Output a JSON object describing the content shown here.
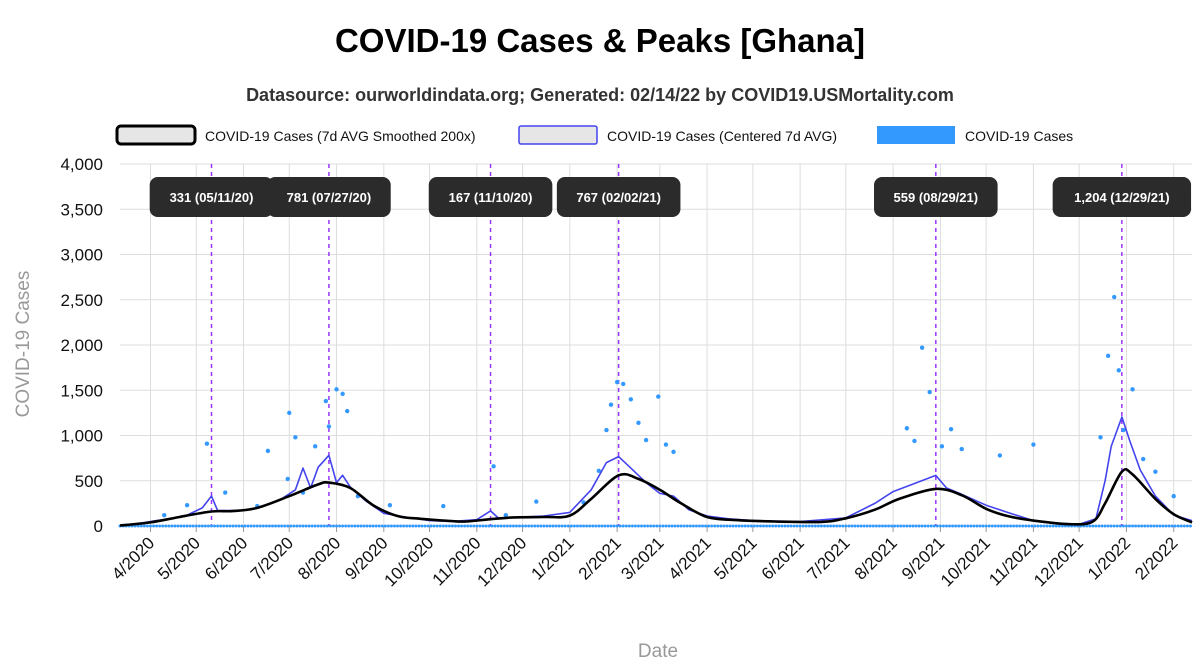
{
  "title": "COVID-19 Cases & Peaks [Ghana]",
  "subtitle": "Datasource: ourworldindata.org; Generated: 02/14/22 by COVID19.USMortality.com",
  "chart_data": {
    "type": "line",
    "xlabel": "Date",
    "ylabel": "COVID-19 Cases",
    "ylim": [
      0,
      4000
    ],
    "yticks": [
      0,
      500,
      1000,
      1500,
      2000,
      2500,
      3000,
      3500,
      4000
    ],
    "ytick_labels": [
      "0",
      "500",
      "1,000",
      "1,500",
      "2,000",
      "2,500",
      "3,000",
      "3,500",
      "4,000"
    ],
    "xlim": [
      "2020-03-12",
      "2022-02-13"
    ],
    "xticks": [
      "2020-04-01",
      "2020-05-01",
      "2020-06-01",
      "2020-07-01",
      "2020-08-01",
      "2020-09-01",
      "2020-10-01",
      "2020-11-01",
      "2020-12-01",
      "2021-01-01",
      "2021-02-01",
      "2021-03-01",
      "2021-04-01",
      "2021-05-01",
      "2021-06-01",
      "2021-07-01",
      "2021-08-01",
      "2021-09-01",
      "2021-10-01",
      "2021-11-01",
      "2021-12-01",
      "2022-01-01",
      "2022-02-01"
    ],
    "xtick_labels": [
      "4/2020",
      "5/2020",
      "6/2020",
      "7/2020",
      "8/2020",
      "9/2020",
      "10/2020",
      "11/2020",
      "12/2020",
      "1/2021",
      "2/2021",
      "3/2021",
      "4/2021",
      "5/2021",
      "6/2021",
      "7/2021",
      "8/2021",
      "9/2021",
      "10/2021",
      "11/2021",
      "12/2021",
      "1/2022",
      "2/2022"
    ],
    "grid": true,
    "legend_position": "top",
    "series": [
      {
        "name": "COVID-19 Cases (7d AVG Smoothed 200x)",
        "style": "line",
        "color": "#000000",
        "points": [
          [
            "2020-03-12",
            5
          ],
          [
            "2020-04-01",
            40
          ],
          [
            "2020-04-20",
            100
          ],
          [
            "2020-05-11",
            160
          ],
          [
            "2020-05-25",
            165
          ],
          [
            "2020-06-10",
            200
          ],
          [
            "2020-07-01",
            330
          ],
          [
            "2020-07-20",
            460
          ],
          [
            "2020-07-27",
            480
          ],
          [
            "2020-08-10",
            420
          ],
          [
            "2020-08-25",
            230
          ],
          [
            "2020-09-10",
            110
          ],
          [
            "2020-09-25",
            80
          ],
          [
            "2020-10-15",
            55
          ],
          [
            "2020-10-25",
            50
          ],
          [
            "2020-11-10",
            75
          ],
          [
            "2020-11-25",
            95
          ],
          [
            "2020-12-15",
            100
          ],
          [
            "2021-01-01",
            115
          ],
          [
            "2021-01-15",
            300
          ],
          [
            "2021-02-02",
            560
          ],
          [
            "2021-02-15",
            520
          ],
          [
            "2021-03-01",
            400
          ],
          [
            "2021-03-15",
            250
          ],
          [
            "2021-04-01",
            100
          ],
          [
            "2021-04-20",
            65
          ],
          [
            "2021-05-15",
            50
          ],
          [
            "2021-06-15",
            45
          ],
          [
            "2021-07-01",
            85
          ],
          [
            "2021-07-20",
            180
          ],
          [
            "2021-08-05",
            300
          ],
          [
            "2021-08-29",
            410
          ],
          [
            "2021-09-15",
            340
          ],
          [
            "2021-10-01",
            190
          ],
          [
            "2021-10-15",
            110
          ],
          [
            "2021-11-01",
            60
          ],
          [
            "2021-11-25",
            20
          ],
          [
            "2021-12-10",
            50
          ],
          [
            "2021-12-18",
            250
          ],
          [
            "2021-12-29",
            600
          ],
          [
            "2022-01-05",
            570
          ],
          [
            "2022-01-20",
            300
          ],
          [
            "2022-02-01",
            130
          ],
          [
            "2022-02-13",
            40
          ]
        ]
      },
      {
        "name": "COVID-19 Cases (Centered 7d AVG)",
        "style": "line",
        "color": "#4444ee",
        "points": [
          [
            "2020-03-12",
            5
          ],
          [
            "2020-03-25",
            30
          ],
          [
            "2020-04-05",
            60
          ],
          [
            "2020-04-15",
            80
          ],
          [
            "2020-04-25",
            120
          ],
          [
            "2020-05-05",
            200
          ],
          [
            "2020-05-11",
            331
          ],
          [
            "2020-05-15",
            170
          ],
          [
            "2020-05-25",
            170
          ],
          [
            "2020-06-05",
            180
          ],
          [
            "2020-06-15",
            230
          ],
          [
            "2020-06-25",
            290
          ],
          [
            "2020-07-05",
            400
          ],
          [
            "2020-07-10",
            640
          ],
          [
            "2020-07-15",
            420
          ],
          [
            "2020-07-20",
            650
          ],
          [
            "2020-07-27",
            781
          ],
          [
            "2020-08-01",
            480
          ],
          [
            "2020-08-05",
            560
          ],
          [
            "2020-08-10",
            430
          ],
          [
            "2020-08-20",
            280
          ],
          [
            "2020-09-01",
            140
          ],
          [
            "2020-09-15",
            100
          ],
          [
            "2020-10-01",
            60
          ],
          [
            "2020-10-15",
            50
          ],
          [
            "2020-11-01",
            70
          ],
          [
            "2020-11-10",
            167
          ],
          [
            "2020-11-15",
            90
          ],
          [
            "2020-12-01",
            100
          ],
          [
            "2020-12-15",
            110
          ],
          [
            "2021-01-01",
            150
          ],
          [
            "2021-01-15",
            400
          ],
          [
            "2021-01-25",
            700
          ],
          [
            "2021-02-02",
            767
          ],
          [
            "2021-02-10",
            640
          ],
          [
            "2021-02-20",
            480
          ],
          [
            "2021-03-01",
            360
          ],
          [
            "2021-03-10",
            330
          ],
          [
            "2021-03-20",
            180
          ],
          [
            "2021-04-01",
            110
          ],
          [
            "2021-04-15",
            80
          ],
          [
            "2021-05-01",
            60
          ],
          [
            "2021-06-01",
            50
          ],
          [
            "2021-07-01",
            90
          ],
          [
            "2021-07-20",
            250
          ],
          [
            "2021-08-01",
            380
          ],
          [
            "2021-08-15",
            470
          ],
          [
            "2021-08-29",
            559
          ],
          [
            "2021-09-05",
            420
          ],
          [
            "2021-09-15",
            350
          ],
          [
            "2021-10-01",
            230
          ],
          [
            "2021-10-15",
            150
          ],
          [
            "2021-11-01",
            60
          ],
          [
            "2021-11-15",
            30
          ],
          [
            "2021-12-01",
            20
          ],
          [
            "2021-12-12",
            80
          ],
          [
            "2021-12-18",
            500
          ],
          [
            "2021-12-22",
            880
          ],
          [
            "2021-12-29",
            1204
          ],
          [
            "2022-01-03",
            950
          ],
          [
            "2022-01-10",
            620
          ],
          [
            "2022-01-20",
            330
          ],
          [
            "2022-02-01",
            120
          ],
          [
            "2022-02-13",
            60
          ]
        ]
      },
      {
        "name": "COVID-19 Cases",
        "style": "scatter",
        "color": "#3399ff",
        "points": [
          [
            "2020-04-10",
            120
          ],
          [
            "2020-04-25",
            230
          ],
          [
            "2020-05-08",
            910
          ],
          [
            "2020-05-20",
            370
          ],
          [
            "2020-06-10",
            220
          ],
          [
            "2020-06-17",
            830
          ],
          [
            "2020-06-30",
            520
          ],
          [
            "2020-07-01",
            1250
          ],
          [
            "2020-07-05",
            980
          ],
          [
            "2020-07-10",
            370
          ],
          [
            "2020-07-18",
            880
          ],
          [
            "2020-07-25",
            1380
          ],
          [
            "2020-07-27",
            1100
          ],
          [
            "2020-08-01",
            1510
          ],
          [
            "2020-08-05",
            1460
          ],
          [
            "2020-08-08",
            1270
          ],
          [
            "2020-08-15",
            330
          ],
          [
            "2020-09-05",
            230
          ],
          [
            "2020-10-10",
            220
          ],
          [
            "2020-11-12",
            660
          ],
          [
            "2020-11-20",
            120
          ],
          [
            "2020-12-10",
            270
          ],
          [
            "2021-01-10",
            260
          ],
          [
            "2021-01-20",
            610
          ],
          [
            "2021-01-25",
            1060
          ],
          [
            "2021-01-28",
            1340
          ],
          [
            "2021-02-01",
            1590
          ],
          [
            "2021-02-05",
            1570
          ],
          [
            "2021-02-10",
            1400
          ],
          [
            "2021-02-15",
            1140
          ],
          [
            "2021-02-20",
            950
          ],
          [
            "2021-02-28",
            1430
          ],
          [
            "2021-03-05",
            900
          ],
          [
            "2021-03-10",
            820
          ],
          [
            "2021-08-10",
            1080
          ],
          [
            "2021-08-15",
            940
          ],
          [
            "2021-08-20",
            1970
          ],
          [
            "2021-08-25",
            1480
          ],
          [
            "2021-09-02",
            880
          ],
          [
            "2021-09-08",
            1070
          ],
          [
            "2021-09-15",
            850
          ],
          [
            "2021-10-10",
            780
          ],
          [
            "2021-11-01",
            900
          ],
          [
            "2021-12-15",
            980
          ],
          [
            "2021-12-20",
            1880
          ],
          [
            "2021-12-24",
            2530
          ],
          [
            "2021-12-27",
            1720
          ],
          [
            "2021-12-30",
            1060
          ],
          [
            "2022-01-05",
            1510
          ],
          [
            "2022-01-12",
            740
          ],
          [
            "2022-01-20",
            600
          ],
          [
            "2022-02-01",
            330
          ]
        ]
      }
    ],
    "peaks": [
      {
        "date": "2020-05-11",
        "label": "331 (05/11/20)"
      },
      {
        "date": "2020-07-27",
        "label": "781 (07/27/20)"
      },
      {
        "date": "2020-11-10",
        "label": "167 (11/10/20)"
      },
      {
        "date": "2021-02-02",
        "label": "767 (02/02/21)"
      },
      {
        "date": "2021-08-29",
        "label": "559 (08/29/21)"
      },
      {
        "date": "2021-12-29",
        "label": "1,204 (12/29/21)"
      }
    ],
    "colors": {
      "peak_line": "#9933ff",
      "peak_box": "#2b2b2b",
      "grid": "#dddddd",
      "smoothed": "#000000",
      "avg7": "#4444ee",
      "cases": "#3399ff"
    }
  }
}
